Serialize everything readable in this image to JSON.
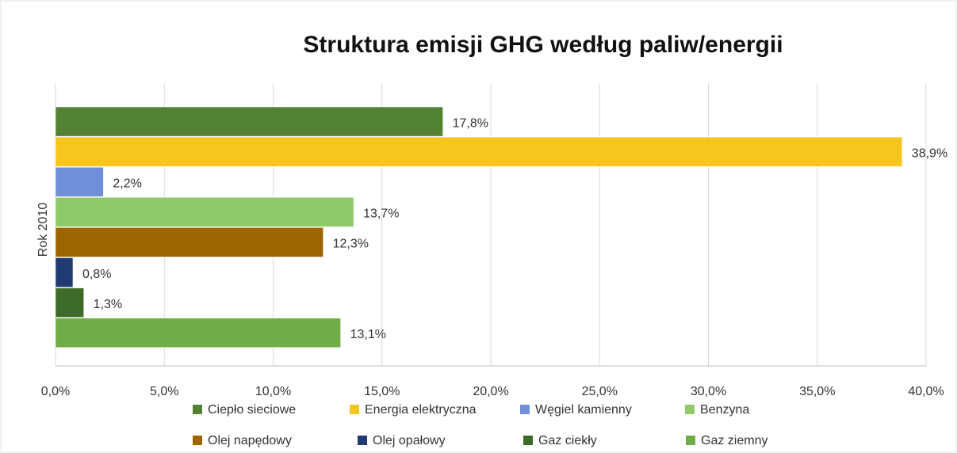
{
  "chart_data": {
    "type": "bar",
    "orientation": "horizontal",
    "title": "Struktura emisji GHG według paliw/energii",
    "categories": [
      "Rok 2010"
    ],
    "series": [
      {
        "name": "Ciepło sieciowe",
        "color": "#548235",
        "values": [
          17.8
        ],
        "value_labels": [
          "17,8%"
        ]
      },
      {
        "name": "Energia elektryczna",
        "color": "#f7c51e",
        "values": [
          38.9
        ],
        "value_labels": [
          "38,9%"
        ]
      },
      {
        "name": "Węgiel kamienny",
        "color": "#6f8fd8",
        "values": [
          2.2
        ],
        "value_labels": [
          "2,2%"
        ]
      },
      {
        "name": "Benzyna",
        "color": "#8fca6a",
        "values": [
          13.7
        ],
        "value_labels": [
          "13,7%"
        ]
      },
      {
        "name": "Olej napędowy",
        "color": "#9c6500",
        "values": [
          12.3
        ],
        "value_labels": [
          "12,3%"
        ]
      },
      {
        "name": "Olej opałowy",
        "color": "#203a72",
        "values": [
          0.8
        ],
        "value_labels": [
          "0,8%"
        ]
      },
      {
        "name": "Gaz ciekły",
        "color": "#3f6b2a",
        "values": [
          1.3
        ],
        "value_labels": [
          "1,3%"
        ]
      },
      {
        "name": "Gaz ziemny",
        "color": "#70ad47",
        "values": [
          13.1
        ],
        "value_labels": [
          "13,1%"
        ]
      }
    ],
    "xlim": [
      0,
      40
    ],
    "xticks": [
      {
        "value": 0,
        "label": "0,0%"
      },
      {
        "value": 5,
        "label": "5,0%"
      },
      {
        "value": 10,
        "label": "10,0%"
      },
      {
        "value": 15,
        "label": "15,0%"
      },
      {
        "value": 20,
        "label": "20,0%"
      },
      {
        "value": 25,
        "label": "25,0%"
      },
      {
        "value": 30,
        "label": "30,0%"
      },
      {
        "value": 35,
        "label": "35,0%"
      },
      {
        "value": 40,
        "label": "40,0%"
      }
    ],
    "grid": true,
    "legend": "bottom"
  }
}
